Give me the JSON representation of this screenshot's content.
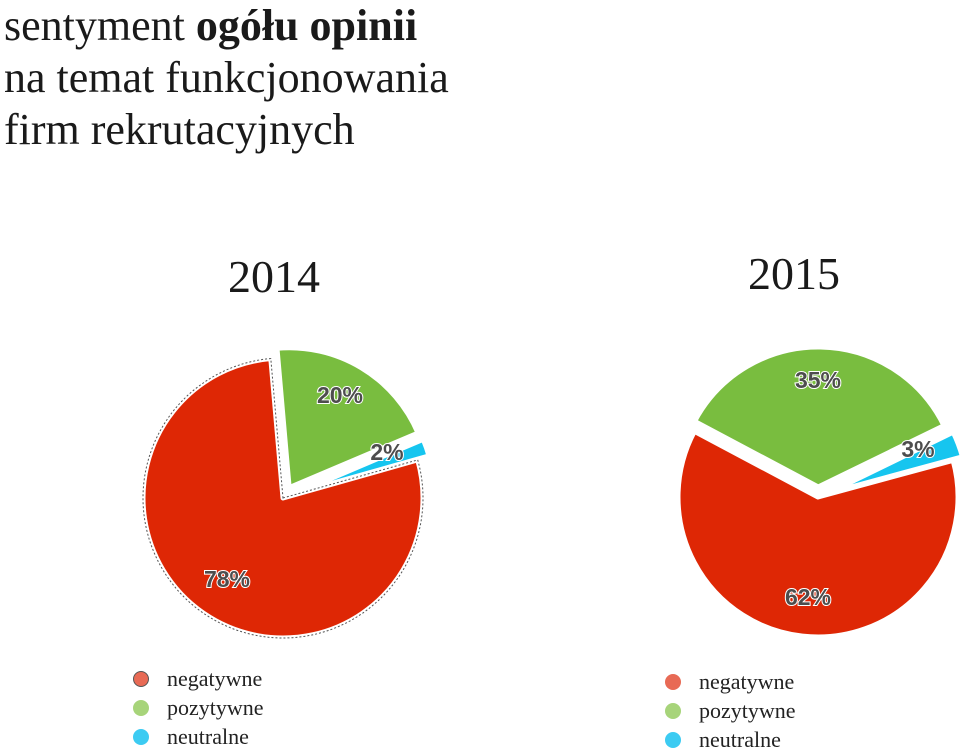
{
  "title": {
    "part1": "sentyment ",
    "part1_bold": "ogółu opinii",
    "line2": "na temat funkcjonowania",
    "line3": "firm rekrutacyjnych"
  },
  "colors": {
    "negatywne": "#de2705",
    "pozytywne": "#79bd3f",
    "neutralne": "#16c5ef"
  },
  "chart_data": [
    {
      "type": "pie",
      "title": "2014",
      "categories": [
        "negatywne",
        "pozytywne",
        "neutralne"
      ],
      "values": [
        78,
        20,
        2
      ],
      "labels": [
        "78%",
        "20%",
        "2%"
      ],
      "legend": [
        "negatywne",
        "pozytywne",
        "neutralne"
      ]
    },
    {
      "type": "pie",
      "title": "2015",
      "categories": [
        "negatywne",
        "pozytywne",
        "neutralne"
      ],
      "values": [
        62,
        35,
        3
      ],
      "labels": [
        "62%",
        "35%",
        "3%"
      ],
      "legend": [
        "negatywne",
        "pozytywne",
        "neutralne"
      ]
    }
  ]
}
